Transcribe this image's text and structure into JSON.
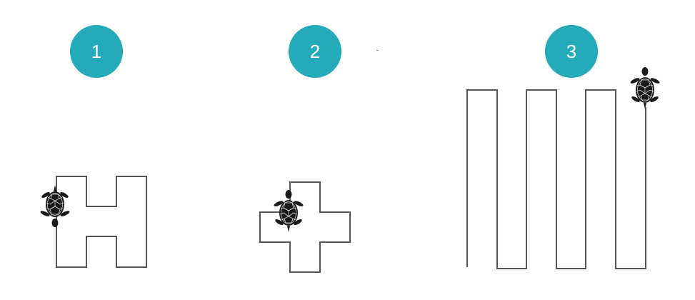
{
  "steps": [
    {
      "number": "1",
      "shape": "letter-H"
    },
    {
      "number": "2",
      "shape": "plus-cross"
    },
    {
      "number": "3",
      "shape": "square-wave"
    }
  ],
  "colors": {
    "badge": "#24aab9",
    "path": "#555555",
    "turtle_shell": "#1a1a1a",
    "turtle_pattern": "#d0d0d0"
  },
  "icons": {
    "turtle": "turtle-icon"
  }
}
